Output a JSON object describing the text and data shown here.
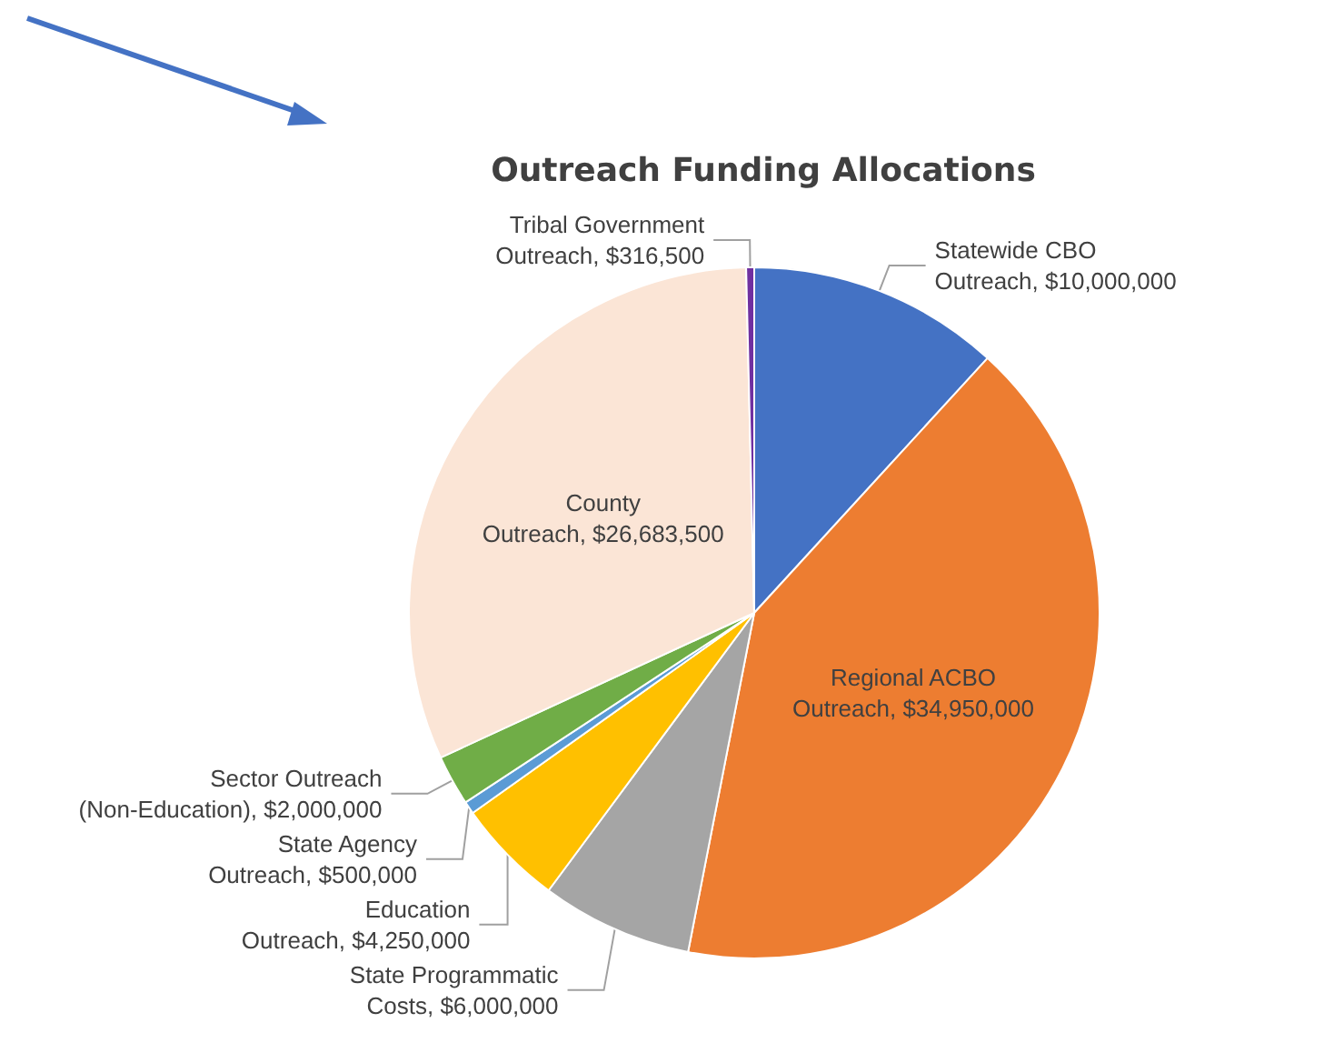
{
  "chart_data": {
    "type": "pie",
    "title": "Outreach Funding Allocations",
    "categories": [
      "Statewide CBO Outreach",
      "Regional ACBO Outreach",
      "State Programmatic Costs",
      "Education Outreach",
      "State Agency Outreach",
      "Sector Outreach (Non-Education)",
      "County Outreach",
      "Tribal Government Outreach"
    ],
    "values": [
      10000000,
      34950000,
      6000000,
      4250000,
      500000,
      2000000,
      26683500,
      316500
    ],
    "value_labels": [
      "$10,000,000",
      "$34,950,000",
      "$6,000,000",
      "$4,250,000",
      "$500,000",
      "$2,000,000",
      "$26,683,500",
      "$316,500"
    ],
    "colors": [
      "#4472c4",
      "#ed7d31",
      "#a5a5a5",
      "#ffc000",
      "#5b9bd5",
      "#70ad47",
      "#fbe5d6",
      "#7030a0"
    ],
    "legend": false
  }
}
